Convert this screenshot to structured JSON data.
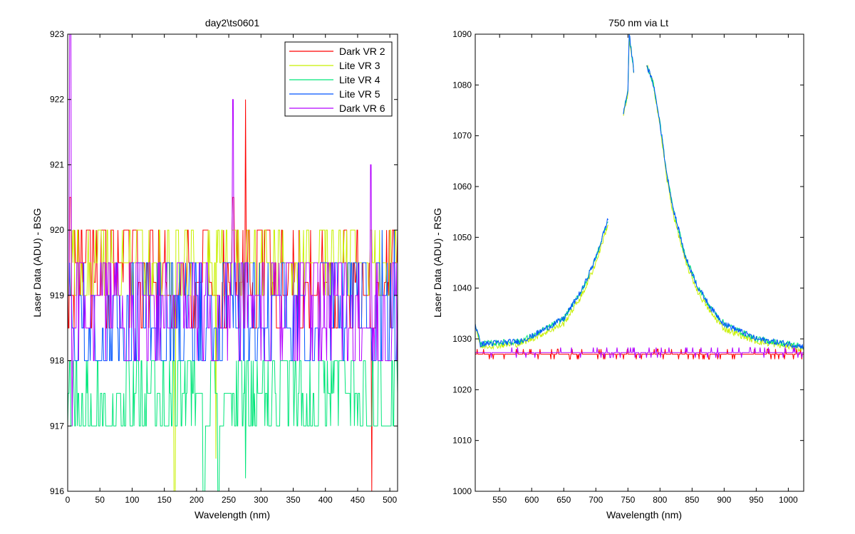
{
  "colors": {
    "series": [
      "#ff0000",
      "#c8f000",
      "#00e67a",
      "#0055ff",
      "#b400ff"
    ],
    "axes": "#000000",
    "background": "#ffffff"
  },
  "chart_data": [
    {
      "type": "line",
      "title": "day2\\ts0601",
      "xlabel": "Wavelength (nm)",
      "ylabel": "Laser Data (ADU) - BSG",
      "xlim": [
        0,
        512
      ],
      "ylim": [
        916,
        923
      ],
      "xticks": [
        0,
        50,
        100,
        150,
        200,
        250,
        300,
        350,
        400,
        450,
        500
      ],
      "yticks": [
        916,
        917,
        918,
        919,
        920,
        921,
        922,
        923
      ],
      "grid": false,
      "legend_position": "top-right",
      "series": [
        {
          "name": "Dark VR 2",
          "baseline": 919.2,
          "alt": [
            919.5,
            920,
            918.5,
            919
          ],
          "note_spikes": [
            [
              3,
              920.5
            ],
            [
              256,
              920.5
            ],
            [
              276,
              922
            ],
            [
              472,
              916
            ]
          ],
          "range": [
            0,
            512
          ]
        },
        {
          "name": "Lite VR 3",
          "baseline": 919.5,
          "alt": [
            920,
            919,
            919.5
          ],
          "note_spikes": [
            [
              165,
              916
            ],
            [
              230,
              916.5
            ]
          ],
          "range": [
            0,
            512
          ]
        },
        {
          "name": "Lite VR 4",
          "baseline": 917,
          "alt": [
            917.5,
            918,
            917
          ],
          "note_spikes": [
            [
              210,
              916
            ],
            [
              233,
              916
            ],
            [
              276,
              916.2
            ]
          ],
          "range": [
            0,
            512
          ]
        },
        {
          "name": "Lite VR 5",
          "baseline": 919,
          "alt": [
            918.5,
            919.5,
            918
          ],
          "note_spikes": [
            [
              488,
              920
            ],
            [
              507,
              920
            ]
          ],
          "range": [
            0,
            512
          ]
        },
        {
          "name": "Dark VR 6",
          "baseline": 919,
          "alt": [
            918.5,
            918,
            919.5
          ],
          "note_spikes": [
            [
              3,
              923
            ],
            [
              7,
              917
            ],
            [
              256,
              922
            ],
            [
              470,
              921
            ]
          ],
          "range": [
            0,
            512
          ]
        }
      ]
    },
    {
      "type": "line",
      "title": "750 nm via Lt",
      "xlabel": "Wavelength (nm)",
      "ylabel": "Laser Data (ADU) - RSG",
      "xlim": [
        512,
        1024
      ],
      "ylim": [
        1000,
        1090
      ],
      "xticks": [
        550,
        600,
        650,
        700,
        750,
        800,
        850,
        900,
        950,
        1000
      ],
      "yticks": [
        1000,
        1010,
        1020,
        1030,
        1040,
        1050,
        1060,
        1070,
        1080,
        1090
      ],
      "grid": false,
      "legend_position": "none",
      "series": [
        {
          "name": "Dark VR 2",
          "baseline": 1027,
          "noise": 1
        },
        {
          "name": "Lite VR 3",
          "peak_profile": [
            [
              512,
              1033
            ],
            [
              520,
              1028.5
            ],
            [
              580,
              1029
            ],
            [
              600,
              1030
            ],
            [
              650,
              1033
            ],
            [
              680,
              1039
            ],
            [
              700,
              1045
            ],
            [
              720,
              1053
            ],
            [
              721,
              null
            ],
            [
              742,
              null
            ],
            [
              743,
              1074
            ],
            [
              750,
              1078
            ],
            [
              752,
              1089
            ],
            [
              760,
              1082
            ],
            [
              761,
              null
            ],
            [
              778,
              null
            ],
            [
              779,
              1084
            ],
            [
              790,
              1080
            ],
            [
              800,
              1072
            ],
            [
              810,
              1062
            ],
            [
              820,
              1055
            ],
            [
              840,
              1045
            ],
            [
              860,
              1039
            ],
            [
              880,
              1035
            ],
            [
              900,
              1032
            ],
            [
              950,
              1029.5
            ],
            [
              1000,
              1028.5
            ],
            [
              1024,
              1028
            ]
          ]
        },
        {
          "name": "Lite VR 4",
          "peak_profile": [
            [
              512,
              1033
            ],
            [
              520,
              1029
            ],
            [
              580,
              1029.5
            ],
            [
              600,
              1030.5
            ],
            [
              650,
              1034
            ],
            [
              680,
              1040
            ],
            [
              700,
              1046
            ],
            [
              720,
              1054
            ],
            [
              721,
              null
            ],
            [
              742,
              null
            ],
            [
              743,
              1074.5
            ],
            [
              750,
              1079
            ],
            [
              752,
              1090
            ],
            [
              760,
              1082
            ],
            [
              761,
              null
            ],
            [
              778,
              null
            ],
            [
              779,
              1084
            ],
            [
              790,
              1080
            ],
            [
              800,
              1072.5
            ],
            [
              810,
              1063
            ],
            [
              820,
              1056
            ],
            [
              840,
              1046
            ],
            [
              860,
              1040
            ],
            [
              880,
              1036
            ],
            [
              900,
              1033
            ],
            [
              950,
              1030
            ],
            [
              1000,
              1029
            ],
            [
              1024,
              1028.5
            ]
          ]
        },
        {
          "name": "Lite VR 5",
          "peak_profile": [
            [
              512,
              1033
            ],
            [
              520,
              1029
            ],
            [
              580,
              1029.5
            ],
            [
              600,
              1030.5
            ],
            [
              650,
              1034
            ],
            [
              680,
              1040
            ],
            [
              700,
              1046
            ],
            [
              720,
              1054
            ],
            [
              721,
              null
            ],
            [
              742,
              null
            ],
            [
              743,
              1074.5
            ],
            [
              750,
              1079
            ],
            [
              752,
              1090
            ],
            [
              760,
              1082
            ],
            [
              761,
              null
            ],
            [
              778,
              null
            ],
            [
              779,
              1084
            ],
            [
              790,
              1080
            ],
            [
              800,
              1072.5
            ],
            [
              810,
              1063
            ],
            [
              820,
              1056
            ],
            [
              840,
              1046
            ],
            [
              860,
              1040
            ],
            [
              880,
              1036
            ],
            [
              900,
              1033
            ],
            [
              950,
              1030
            ],
            [
              1000,
              1029
            ],
            [
              1024,
              1028.5
            ]
          ]
        },
        {
          "name": "Dark VR 6",
          "baseline": 1027.3,
          "noise": 1
        }
      ]
    }
  ]
}
